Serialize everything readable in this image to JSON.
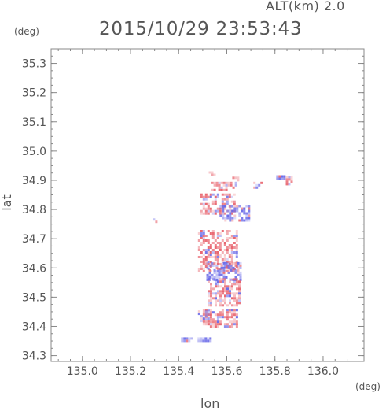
{
  "header": {
    "altitude_label": "ALT(km)  2.0",
    "timestamp": "2015/10/29 23:53:43"
  },
  "axes": {
    "y_unit": "(deg)",
    "x_unit": "(deg)",
    "y_label": "lat",
    "x_label": "lon"
  },
  "chart_data": {
    "type": "heatmap",
    "xlabel": "lon",
    "ylabel": "lat",
    "xlim": [
      134.87,
      136.17
    ],
    "ylim": [
      34.28,
      35.35
    ],
    "x_ticks": [
      "135.0",
      "135.2",
      "135.4",
      "135.6",
      "135.8",
      "136.0"
    ],
    "y_ticks": [
      "34.3",
      "34.4",
      "34.5",
      "34.6",
      "34.7",
      "34.8",
      "34.9",
      "35.0",
      "35.1",
      "35.2",
      "35.3"
    ],
    "grid": false,
    "colors": {
      "positive": "#e8646e",
      "negative": "#6a6ae8",
      "axis": "#888888",
      "text": "#555555"
    },
    "echo_regions": [
      {
        "lon": 135.535,
        "lat": 34.925,
        "dlon": 0.02,
        "dlat": 0.012,
        "sign": "positive"
      },
      {
        "lon": 135.635,
        "lat": 34.905,
        "dlon": 0.025,
        "dlat": 0.015,
        "sign": "positive"
      },
      {
        "lon": 135.585,
        "lat": 34.88,
        "dlon": 0.1,
        "dlat": 0.03,
        "sign": "positive"
      },
      {
        "lon": 135.73,
        "lat": 34.885,
        "dlon": 0.04,
        "dlat": 0.02,
        "sign": "negative"
      },
      {
        "lon": 135.82,
        "lat": 34.91,
        "dlon": 0.03,
        "dlat": 0.015,
        "sign": "negative"
      },
      {
        "lon": 135.855,
        "lat": 34.9,
        "dlon": 0.02,
        "dlat": 0.03,
        "sign": "positive"
      },
      {
        "lon": 135.56,
        "lat": 34.82,
        "dlon": 0.14,
        "dlat": 0.07,
        "sign": "positive"
      },
      {
        "lon": 135.63,
        "lat": 34.79,
        "dlon": 0.12,
        "dlat": 0.05,
        "sign": "negative"
      },
      {
        "lon": 135.3,
        "lat": 34.765,
        "dlon": 0.015,
        "dlat": 0.01,
        "sign": "negative"
      },
      {
        "lon": 135.56,
        "lat": 34.66,
        "dlon": 0.16,
        "dlat": 0.14,
        "sign": "positive"
      },
      {
        "lon": 135.585,
        "lat": 34.59,
        "dlon": 0.14,
        "dlat": 0.06,
        "sign": "negative"
      },
      {
        "lon": 135.585,
        "lat": 34.52,
        "dlon": 0.13,
        "dlat": 0.09,
        "sign": "positive"
      },
      {
        "lon": 135.57,
        "lat": 34.43,
        "dlon": 0.14,
        "dlat": 0.06,
        "sign": "positive"
      },
      {
        "lon": 135.5,
        "lat": 34.435,
        "dlon": 0.04,
        "dlat": 0.04,
        "sign": "negative"
      },
      {
        "lon": 135.47,
        "lat": 34.355,
        "dlon": 0.12,
        "dlat": 0.015,
        "sign": "negative"
      }
    ]
  }
}
